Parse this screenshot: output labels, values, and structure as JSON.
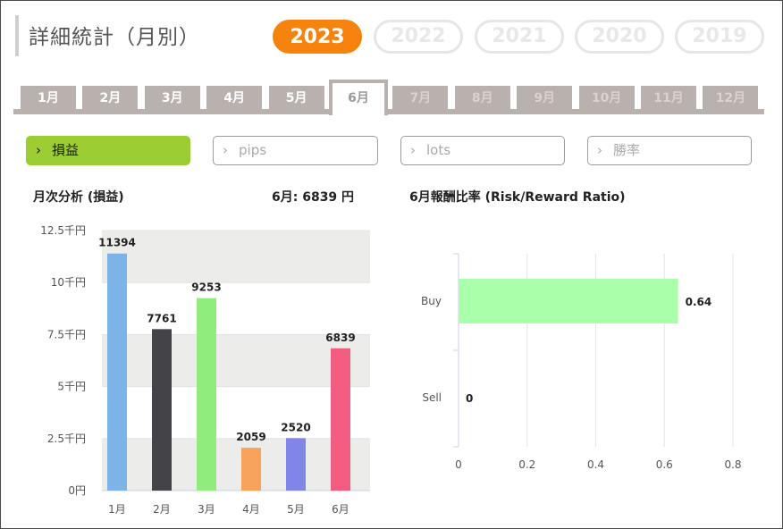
{
  "page": {
    "title": "詳細統計（月別）",
    "years": [
      {
        "label": "2023",
        "active": true
      },
      {
        "label": "2022",
        "active": false
      },
      {
        "label": "2021",
        "active": false
      },
      {
        "label": "2020",
        "active": false
      },
      {
        "label": "2019",
        "active": false
      }
    ],
    "months": [
      {
        "label": "1月",
        "state": "normal"
      },
      {
        "label": "2月",
        "state": "normal"
      },
      {
        "label": "3月",
        "state": "normal"
      },
      {
        "label": "4月",
        "state": "normal"
      },
      {
        "label": "5月",
        "state": "normal"
      },
      {
        "label": "6月",
        "state": "active"
      },
      {
        "label": "7月",
        "state": "dim"
      },
      {
        "label": "8月",
        "state": "dim"
      },
      {
        "label": "9月",
        "state": "dim"
      },
      {
        "label": "10月",
        "state": "dim"
      },
      {
        "label": "11月",
        "state": "dim"
      },
      {
        "label": "12月",
        "state": "dim"
      }
    ],
    "metrics": [
      {
        "label": "損益",
        "active": true
      },
      {
        "label": "pips",
        "active": false
      },
      {
        "label": "lots",
        "active": false
      },
      {
        "label": "勝率",
        "active": false
      }
    ],
    "chevron": "›"
  },
  "colors": {
    "accent_orange": "#f5830d",
    "accent_green": "#9ccd32",
    "tab_gray": "#b9b1ae"
  },
  "chart_data": [
    {
      "type": "bar",
      "title": "月次分析 (損益)",
      "summary": "6月:  6839 円",
      "categories": [
        "1月",
        "2月",
        "3月",
        "4月",
        "5月",
        "6月"
      ],
      "values": [
        11394,
        7761,
        9253,
        2059,
        2520,
        6839
      ],
      "bar_colors": [
        "#7cb4e8",
        "#434348",
        "#90ed7d",
        "#f7a35c",
        "#8085e9",
        "#f15c80"
      ],
      "ylim": [
        0,
        12500
      ],
      "yticks": [
        0,
        2500,
        5000,
        7500,
        10000,
        12500
      ],
      "ytick_labels": [
        "0円",
        "2.5千円",
        "5千円",
        "7.5千円",
        "10千円",
        "12.5千円"
      ],
      "band_color": "#ececea",
      "grid": true
    },
    {
      "type": "bar",
      "orientation": "horizontal",
      "title": "6月報酬比率 (Risk/Reward Ratio)",
      "categories": [
        "Buy",
        "Sell"
      ],
      "values": [
        0.64,
        0
      ],
      "bar_color": "#aaffaa",
      "xlim": [
        0,
        0.8
      ],
      "xticks": [
        0,
        0.2,
        0.4,
        0.6,
        0.8
      ],
      "xtick_labels": [
        "0",
        "0.2",
        "0.4",
        "0.6",
        "0.8"
      ],
      "grid": true
    }
  ]
}
